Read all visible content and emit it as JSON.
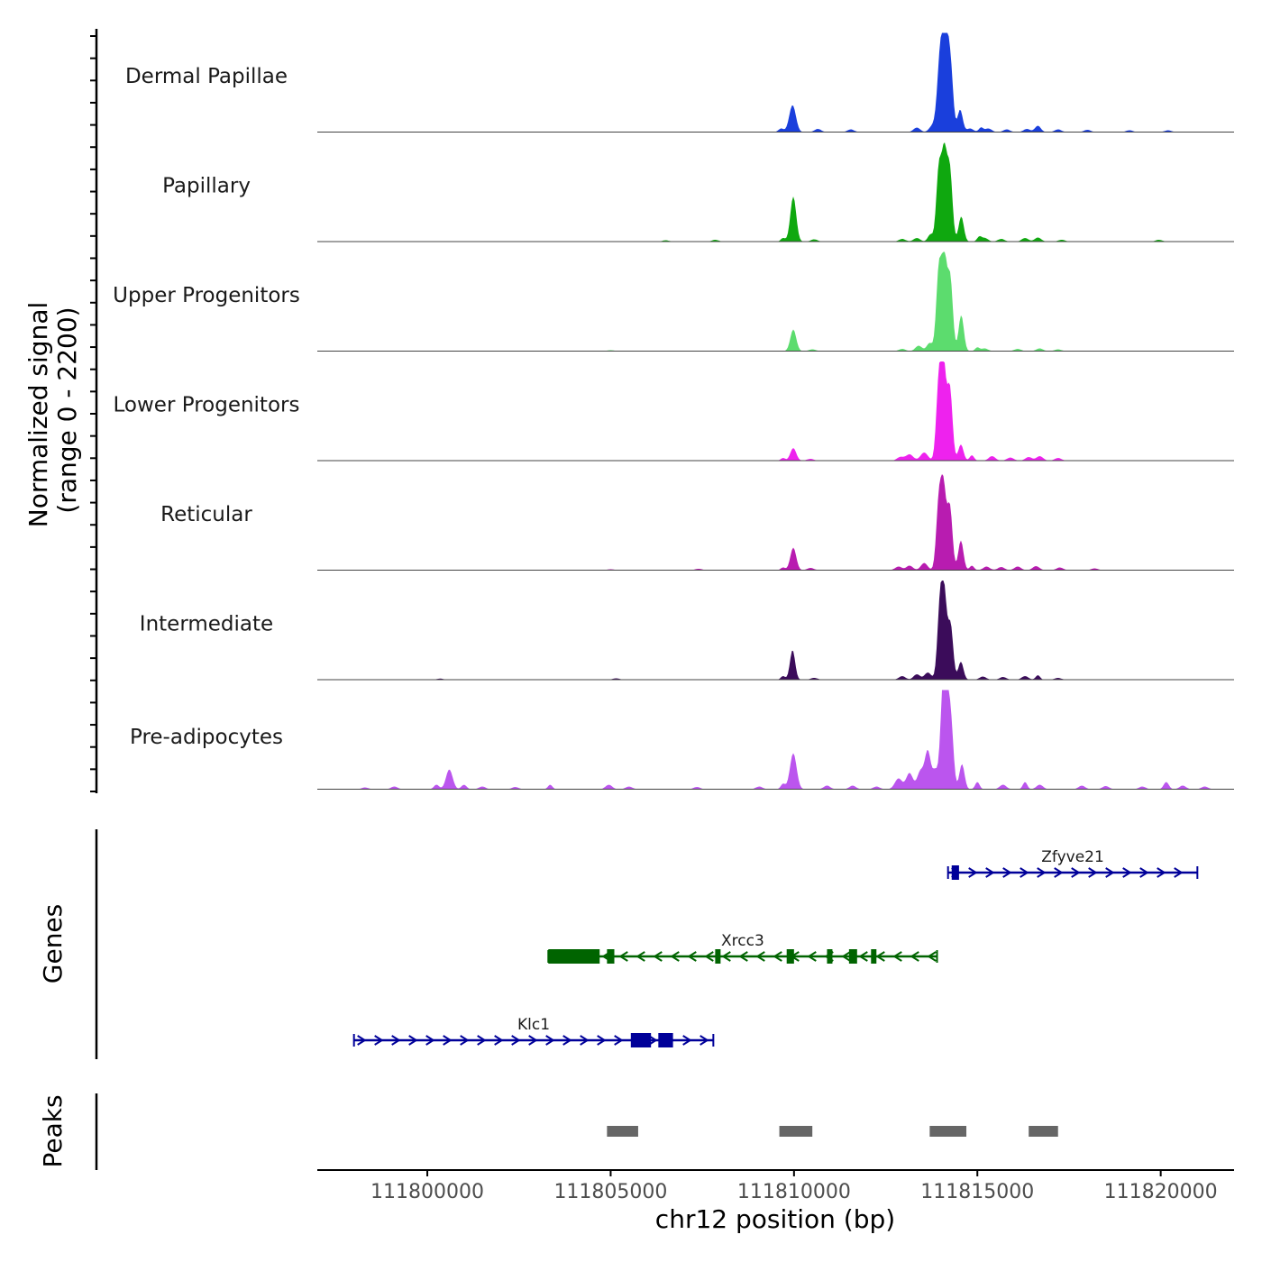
{
  "chart_data": {
    "type": "area",
    "title": "",
    "ylabel_line1": "Normalized signal",
    "ylabel_line2": "(range 0 - 2200)",
    "yrange": [
      0,
      2200
    ],
    "xlabel": "chr12 position (bp)",
    "xlim": [
      111797000,
      111822000
    ],
    "xticks": [
      111800000,
      111805000,
      111810000,
      111815000,
      111820000
    ],
    "xtick_labels": [
      "111800000",
      "111805000",
      "111810000",
      "111815000",
      "111820000"
    ],
    "tracks": [
      {
        "name": "Dermal Papillae",
        "color": "#1a3fdc",
        "bg_peaks": [
          [
            111810650,
            0.035
          ],
          [
            111811550,
            0.03
          ],
          [
            111813350,
            0.05
          ],
          [
            111813900,
            0.08
          ],
          [
            111814800,
            0.04
          ],
          [
            111815300,
            0.04
          ],
          [
            111815800,
            0.03
          ],
          [
            111816350,
            0.035
          ],
          [
            111817200,
            0.03
          ],
          [
            111818000,
            0.025
          ],
          [
            111819150,
            0.02
          ],
          [
            111820200,
            0.02
          ]
        ],
        "peaks": [
          {
            "c": 111809960,
            "h": 0.3,
            "w": 90
          },
          {
            "c": 111809650,
            "h": 0.04,
            "w": 70
          },
          {
            "c": 111813750,
            "h": 0.05,
            "w": 80
          },
          {
            "c": 111814000,
            "h": 0.88,
            "w": 80
          },
          {
            "c": 111814140,
            "h": 0.96,
            "w": 70
          },
          {
            "c": 111814270,
            "h": 0.7,
            "w": 70
          },
          {
            "c": 111814530,
            "h": 0.25,
            "w": 70
          },
          {
            "c": 111815100,
            "h": 0.05,
            "w": 60
          },
          {
            "c": 111816650,
            "h": 0.07,
            "w": 80
          }
        ]
      },
      {
        "name": "Papillary",
        "color": "#0fa80f",
        "bg_peaks": [
          [
            111806500,
            0.015
          ],
          [
            111807850,
            0.02
          ],
          [
            111810550,
            0.025
          ],
          [
            111812950,
            0.03
          ],
          [
            111813350,
            0.04
          ],
          [
            111815200,
            0.04
          ],
          [
            111815650,
            0.03
          ],
          [
            111816300,
            0.04
          ],
          [
            111816650,
            0.045
          ],
          [
            111817300,
            0.02
          ],
          [
            111819950,
            0.02
          ]
        ],
        "peaks": [
          {
            "c": 111809980,
            "h": 0.5,
            "w": 80
          },
          {
            "c": 111809700,
            "h": 0.04,
            "w": 60
          },
          {
            "c": 111813720,
            "h": 0.08,
            "w": 70
          },
          {
            "c": 111813950,
            "h": 0.8,
            "w": 70
          },
          {
            "c": 111814100,
            "h": 0.95,
            "w": 70
          },
          {
            "c": 111814250,
            "h": 0.78,
            "w": 70
          },
          {
            "c": 111814560,
            "h": 0.28,
            "w": 70
          },
          {
            "c": 111815050,
            "h": 0.05,
            "w": 60
          }
        ]
      },
      {
        "name": "Upper Progenitors",
        "color": "#5cdc6e",
        "bg_peaks": [
          [
            111805000,
            0.01
          ],
          [
            111810500,
            0.02
          ],
          [
            111812950,
            0.025
          ],
          [
            111815200,
            0.03
          ],
          [
            111816100,
            0.025
          ],
          [
            111816700,
            0.03
          ],
          [
            111817200,
            0.02
          ]
        ],
        "peaks": [
          {
            "c": 111809980,
            "h": 0.24,
            "w": 80
          },
          {
            "c": 111813400,
            "h": 0.06,
            "w": 90
          },
          {
            "c": 111813700,
            "h": 0.09,
            "w": 80
          },
          {
            "c": 111813950,
            "h": 0.9,
            "w": 70
          },
          {
            "c": 111814100,
            "h": 1.0,
            "w": 70
          },
          {
            "c": 111814260,
            "h": 0.8,
            "w": 70
          },
          {
            "c": 111814560,
            "h": 0.4,
            "w": 70
          },
          {
            "c": 111815000,
            "h": 0.04,
            "w": 60
          }
        ]
      },
      {
        "name": "Lower Progenitors",
        "color": "#ee22ee",
        "bg_peaks": [
          [
            111810450,
            0.02
          ],
          [
            111812900,
            0.04
          ],
          [
            111815400,
            0.05
          ],
          [
            111815900,
            0.035
          ],
          [
            111816400,
            0.04
          ],
          [
            111816700,
            0.05
          ],
          [
            111817200,
            0.03
          ]
        ],
        "peaks": [
          {
            "c": 111809980,
            "h": 0.14,
            "w": 80
          },
          {
            "c": 111809700,
            "h": 0.03,
            "w": 60
          },
          {
            "c": 111813150,
            "h": 0.07,
            "w": 100
          },
          {
            "c": 111813550,
            "h": 0.09,
            "w": 100
          },
          {
            "c": 111813950,
            "h": 0.86,
            "w": 70
          },
          {
            "c": 111814080,
            "h": 1.0,
            "w": 70
          },
          {
            "c": 111814250,
            "h": 0.8,
            "w": 70
          },
          {
            "c": 111814550,
            "h": 0.18,
            "w": 70
          },
          {
            "c": 111814850,
            "h": 0.06,
            "w": 60
          }
        ]
      },
      {
        "name": "Reticular",
        "color": "#b81cb0",
        "bg_peaks": [
          [
            111805000,
            0.01
          ],
          [
            111807400,
            0.015
          ],
          [
            111810450,
            0.025
          ],
          [
            111812850,
            0.04
          ],
          [
            111813150,
            0.05
          ],
          [
            111815250,
            0.04
          ],
          [
            111815650,
            0.035
          ],
          [
            111816100,
            0.04
          ],
          [
            111816600,
            0.045
          ],
          [
            111817250,
            0.03
          ],
          [
            111818200,
            0.02
          ]
        ],
        "peaks": [
          {
            "c": 111809980,
            "h": 0.25,
            "w": 80
          },
          {
            "c": 111809700,
            "h": 0.03,
            "w": 60
          },
          {
            "c": 111813550,
            "h": 0.08,
            "w": 90
          },
          {
            "c": 111813950,
            "h": 0.75,
            "w": 70
          },
          {
            "c": 111814080,
            "h": 0.86,
            "w": 70
          },
          {
            "c": 111814250,
            "h": 0.7,
            "w": 70
          },
          {
            "c": 111814550,
            "h": 0.33,
            "w": 70
          },
          {
            "c": 111814850,
            "h": 0.05,
            "w": 60
          }
        ]
      },
      {
        "name": "Intermediate",
        "color": "#3b0c5a",
        "bg_peaks": [
          [
            111800350,
            0.012
          ],
          [
            111805150,
            0.015
          ],
          [
            111810550,
            0.02
          ],
          [
            111812950,
            0.04
          ],
          [
            111815150,
            0.035
          ],
          [
            111815700,
            0.03
          ],
          [
            111816300,
            0.04
          ],
          [
            111817200,
            0.02
          ]
        ],
        "peaks": [
          {
            "c": 111809960,
            "h": 0.33,
            "w": 70
          },
          {
            "c": 111809700,
            "h": 0.04,
            "w": 60
          },
          {
            "c": 111813350,
            "h": 0.06,
            "w": 90
          },
          {
            "c": 111813650,
            "h": 0.08,
            "w": 90
          },
          {
            "c": 111813980,
            "h": 0.8,
            "w": 70
          },
          {
            "c": 111814100,
            "h": 0.87,
            "w": 70
          },
          {
            "c": 111814270,
            "h": 0.6,
            "w": 70
          },
          {
            "c": 111814550,
            "h": 0.2,
            "w": 70
          },
          {
            "c": 111816650,
            "h": 0.05,
            "w": 60
          }
        ]
      },
      {
        "name": "Pre-adipocytes",
        "color": "#bb55ee",
        "bg_peaks": [
          [
            111798300,
            0.02
          ],
          [
            111799100,
            0.03
          ],
          [
            111801500,
            0.03
          ],
          [
            111802400,
            0.025
          ],
          [
            111804950,
            0.05
          ],
          [
            111805500,
            0.03
          ],
          [
            111807350,
            0.025
          ],
          [
            111809050,
            0.03
          ],
          [
            111810900,
            0.04
          ],
          [
            111811600,
            0.04
          ],
          [
            111812250,
            0.03
          ],
          [
            111815700,
            0.05
          ],
          [
            111816700,
            0.05
          ],
          [
            111817850,
            0.04
          ],
          [
            111818500,
            0.035
          ],
          [
            111819500,
            0.03
          ],
          [
            111820600,
            0.04
          ],
          [
            111821200,
            0.03
          ]
        ],
        "peaks": [
          {
            "c": 111800600,
            "h": 0.22,
            "w": 90
          },
          {
            "c": 111800250,
            "h": 0.05,
            "w": 70
          },
          {
            "c": 111801000,
            "h": 0.05,
            "w": 70
          },
          {
            "c": 111803350,
            "h": 0.05,
            "w": 60
          },
          {
            "c": 111809980,
            "h": 0.4,
            "w": 90
          },
          {
            "c": 111809700,
            "h": 0.06,
            "w": 60
          },
          {
            "c": 111812850,
            "h": 0.12,
            "w": 100
          },
          {
            "c": 111813150,
            "h": 0.18,
            "w": 90
          },
          {
            "c": 111813450,
            "h": 0.2,
            "w": 90
          },
          {
            "c": 111813650,
            "h": 0.42,
            "w": 80
          },
          {
            "c": 111813850,
            "h": 0.2,
            "w": 70
          },
          {
            "c": 111814050,
            "h": 0.85,
            "w": 70
          },
          {
            "c": 111814150,
            "h": 1.02,
            "w": 70
          },
          {
            "c": 111814280,
            "h": 0.7,
            "w": 70
          },
          {
            "c": 111814580,
            "h": 0.28,
            "w": 70
          },
          {
            "c": 111815000,
            "h": 0.08,
            "w": 60
          },
          {
            "c": 111816300,
            "h": 0.08,
            "w": 60
          },
          {
            "c": 111820150,
            "h": 0.08,
            "w": 70
          }
        ]
      }
    ],
    "genes_panel_label": "Genes",
    "genes": [
      {
        "name": "Zfyve21",
        "color": "#000099",
        "strand": "+",
        "row": 0,
        "start": 111814200,
        "end": 111821000,
        "exons": [
          [
            111814300,
            111814500
          ]
        ]
      },
      {
        "name": "Xrcc3",
        "color": "#006400",
        "strand": "-",
        "row": 1,
        "start": 111803300,
        "end": 111813900,
        "exons": [
          [
            111803300,
            111804700
          ],
          [
            111804900,
            111805100
          ],
          [
            111807850,
            111807970
          ],
          [
            111809800,
            111810000
          ],
          [
            111810900,
            111811000
          ],
          [
            111811500,
            111811720
          ],
          [
            111812100,
            111812200
          ]
        ]
      },
      {
        "name": "Klc1",
        "color": "#000099",
        "strand": "+",
        "row": 2,
        "start": 111798000,
        "end": 111807800,
        "exons": [
          [
            111805550,
            111806100
          ],
          [
            111806300,
            111806700
          ]
        ]
      }
    ],
    "peaks_panel_label": "Peaks",
    "peak_regions": [
      [
        111804900,
        111805750
      ],
      [
        111809600,
        111810500
      ],
      [
        111813700,
        111814700
      ],
      [
        111816400,
        111817200
      ]
    ]
  }
}
